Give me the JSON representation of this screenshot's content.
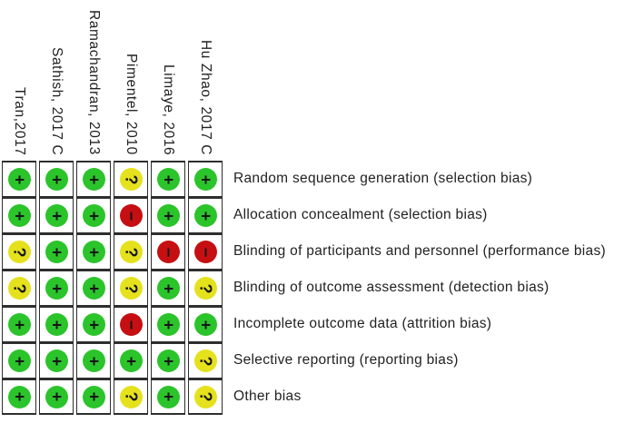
{
  "chart_data": {
    "type": "heatmap",
    "description": "Cochrane risk of bias summary matrix: studies (columns) by bias domains (rows), judgement symbols in colored circles",
    "x_studies": [
      "Tran,2017",
      "Sathish, 2017 C",
      "Ramachandran, 2013",
      "Pimentel, 2010",
      "Limaye, 2016",
      "Hu Zhao, 2017 C"
    ],
    "y_domains": [
      "Random sequence generation (selection bias)",
      "Allocation concealment (selection bias)",
      "Blinding of participants and personnel (performance bias)",
      "Blinding of outcome assessment (detection bias)",
      "Incomplete outcome data (attrition bias)",
      "Selective reporting (reporting bias)",
      "Other bias"
    ],
    "judgements": [
      [
        "+",
        "+",
        "+",
        "?",
        "+",
        "+"
      ],
      [
        "+",
        "+",
        "+",
        "-",
        "+",
        "+"
      ],
      [
        "?",
        "+",
        "+",
        "?",
        "-",
        "-"
      ],
      [
        "?",
        "+",
        "+",
        "?",
        "+",
        "?"
      ],
      [
        "+",
        "+",
        "+",
        "-",
        "+",
        "+"
      ],
      [
        "+",
        "+",
        "+",
        "+",
        "+",
        "?"
      ],
      [
        "+",
        "+",
        "+",
        "?",
        "+",
        "?"
      ]
    ],
    "symbol_colors": {
      "+": "#2bc42b",
      "?": "#e5e11c",
      "-": "#c50f12"
    },
    "display_symbols": {
      "+": "+",
      "?": "?",
      "-": "−"
    },
    "grid": "on",
    "legend_position": "none",
    "title": "",
    "xlabel": "",
    "ylabel": ""
  }
}
